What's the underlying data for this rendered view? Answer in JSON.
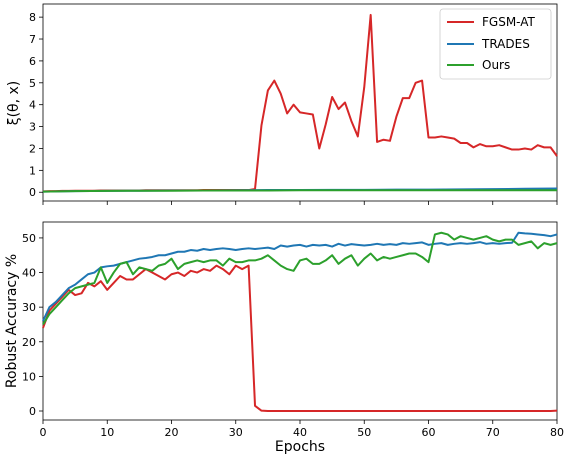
{
  "chart_data": [
    {
      "type": "line",
      "title": "",
      "xlabel": "",
      "ylabel": "ξ(θ, x)",
      "xlim": [
        0,
        80
      ],
      "ylim": [
        -0.4,
        8.6
      ],
      "xticks": [
        0,
        10,
        20,
        30,
        40,
        50,
        60,
        70,
        80
      ],
      "yticks": [
        0,
        1,
        2,
        3,
        4,
        5,
        6,
        7,
        8
      ],
      "x_tick_labels_visible": false,
      "legend": {
        "position": "top-right"
      },
      "series": [
        {
          "name": "FGSM-AT",
          "color": "#d62728",
          "x": [
            0,
            1,
            2,
            3,
            4,
            5,
            6,
            7,
            8,
            9,
            10,
            11,
            12,
            13,
            14,
            15,
            16,
            17,
            18,
            19,
            20,
            21,
            22,
            23,
            24,
            25,
            26,
            27,
            28,
            29,
            30,
            31,
            32,
            33,
            34,
            35,
            36,
            37,
            38,
            39,
            40,
            41,
            42,
            43,
            44,
            45,
            46,
            47,
            48,
            49,
            50,
            51,
            52,
            53,
            54,
            55,
            56,
            57,
            58,
            59,
            60,
            61,
            62,
            63,
            64,
            65,
            66,
            67,
            68,
            69,
            70,
            71,
            72,
            73,
            74,
            75,
            76,
            77,
            78,
            79,
            80
          ],
          "values": [
            0.04,
            0.05,
            0.05,
            0.06,
            0.06,
            0.07,
            0.07,
            0.07,
            0.07,
            0.08,
            0.08,
            0.08,
            0.08,
            0.08,
            0.08,
            0.08,
            0.09,
            0.09,
            0.09,
            0.09,
            0.09,
            0.09,
            0.09,
            0.09,
            0.09,
            0.1,
            0.1,
            0.1,
            0.1,
            0.1,
            0.1,
            0.1,
            0.1,
            0.15,
            3.05,
            4.65,
            5.1,
            4.5,
            3.6,
            4.0,
            3.65,
            3.6,
            3.55,
            2.0,
            3.1,
            4.35,
            3.8,
            4.1,
            3.25,
            2.55,
            4.8,
            8.1,
            2.3,
            2.4,
            2.35,
            3.45,
            4.3,
            4.3,
            5.0,
            5.1,
            2.5,
            2.5,
            2.55,
            2.5,
            2.45,
            2.25,
            2.25,
            2.05,
            2.2,
            2.1,
            2.1,
            2.15,
            2.05,
            1.95,
            1.95,
            2.0,
            1.95,
            2.15,
            2.05,
            2.05,
            1.65
          ]
        },
        {
          "name": "TRADES",
          "color": "#1f77b4",
          "x": [
            0,
            5,
            10,
            15,
            20,
            25,
            30,
            35,
            40,
            45,
            50,
            55,
            60,
            65,
            70,
            75,
            80
          ],
          "values": [
            0.03,
            0.05,
            0.06,
            0.07,
            0.08,
            0.08,
            0.09,
            0.1,
            0.1,
            0.11,
            0.11,
            0.12,
            0.12,
            0.13,
            0.14,
            0.16,
            0.17
          ]
        },
        {
          "name": "Ours",
          "color": "#2ca02c",
          "x": [
            0,
            5,
            10,
            15,
            20,
            25,
            30,
            35,
            40,
            45,
            50,
            55,
            60,
            65,
            70,
            75,
            80
          ],
          "values": [
            0.03,
            0.05,
            0.06,
            0.07,
            0.07,
            0.08,
            0.08,
            0.08,
            0.09,
            0.09,
            0.09,
            0.09,
            0.09,
            0.09,
            0.09,
            0.09,
            0.09
          ]
        }
      ]
    },
    {
      "type": "line",
      "title": "",
      "xlabel": "Epochs",
      "ylabel": "Robust Accuracy %",
      "xlim": [
        0,
        80
      ],
      "ylim": [
        -2.6,
        54.6
      ],
      "xticks": [
        0,
        10,
        20,
        30,
        40,
        50,
        60,
        70,
        80
      ],
      "yticks": [
        0,
        10,
        20,
        30,
        40,
        50
      ],
      "series": [
        {
          "name": "FGSM-AT",
          "color": "#d62728",
          "x": [
            0,
            1,
            2,
            3,
            4,
            5,
            6,
            7,
            8,
            9,
            10,
            11,
            12,
            13,
            14,
            15,
            16,
            17,
            18,
            19,
            20,
            21,
            22,
            23,
            24,
            25,
            26,
            27,
            28,
            29,
            30,
            31,
            32,
            33,
            34,
            35,
            36,
            37,
            38,
            39,
            40,
            41,
            42,
            43,
            44,
            45,
            46,
            47,
            48,
            49,
            50,
            51,
            52,
            53,
            54,
            55,
            56,
            57,
            58,
            59,
            60,
            61,
            62,
            63,
            64,
            65,
            66,
            67,
            68,
            69,
            70,
            71,
            72,
            73,
            74,
            75,
            76,
            77,
            78,
            79,
            80
          ],
          "values": [
            24,
            29,
            31,
            33,
            35,
            33.5,
            34,
            37,
            36,
            37.5,
            35,
            37,
            39,
            38,
            38,
            39.5,
            41,
            40,
            39,
            38,
            39.5,
            40,
            39,
            40.5,
            40,
            41,
            40.5,
            42,
            41,
            39.5,
            42,
            41,
            42,
            1.5,
            0.1,
            0,
            0,
            0,
            0,
            0,
            0,
            0,
            0,
            0,
            0,
            0,
            0,
            0,
            0,
            0,
            0,
            0,
            0,
            0,
            0,
            0,
            0,
            0,
            0,
            0,
            0,
            0,
            0,
            0,
            0,
            0,
            0,
            0,
            0,
            0,
            0,
            0,
            0,
            0,
            0,
            0,
            0,
            0,
            0,
            0,
            0.1
          ]
        },
        {
          "name": "TRADES",
          "color": "#1f77b4",
          "x": [
            0,
            1,
            2,
            3,
            4,
            5,
            6,
            7,
            8,
            9,
            10,
            11,
            12,
            13,
            14,
            15,
            16,
            17,
            18,
            19,
            20,
            21,
            22,
            23,
            24,
            25,
            26,
            27,
            28,
            29,
            30,
            31,
            32,
            33,
            34,
            35,
            36,
            37,
            38,
            39,
            40,
            41,
            42,
            43,
            44,
            45,
            46,
            47,
            48,
            49,
            50,
            51,
            52,
            53,
            54,
            55,
            56,
            57,
            58,
            59,
            60,
            61,
            62,
            63,
            64,
            65,
            66,
            67,
            68,
            69,
            70,
            71,
            72,
            73,
            74,
            75,
            76,
            77,
            78,
            79,
            80
          ],
          "values": [
            26,
            30,
            31.5,
            33.5,
            35.5,
            36.5,
            38,
            39.5,
            40,
            41.5,
            41.8,
            42,
            42.5,
            43,
            43.5,
            44,
            44.2,
            44.5,
            45,
            45,
            45.5,
            46,
            46,
            46.5,
            46.3,
            46.8,
            46.5,
            46.8,
            47,
            46.8,
            46.5,
            46.8,
            47,
            46.8,
            47,
            47.2,
            46.8,
            47.8,
            47.5,
            47.8,
            48,
            47.5,
            48,
            47.8,
            48,
            47.5,
            48.3,
            47.8,
            48.2,
            48,
            47.8,
            48,
            48.3,
            48,
            48.2,
            48,
            48.5,
            48.3,
            48.5,
            48.7,
            48,
            48.3,
            48.5,
            48,
            48.3,
            48.5,
            48.3,
            48.5,
            48.8,
            48.3,
            48.5,
            48.3,
            48.5,
            48.6,
            51.5,
            51.3,
            51.2,
            51,
            50.8,
            50.5,
            51
          ]
        },
        {
          "name": "Ours",
          "color": "#2ca02c",
          "x": [
            0,
            1,
            2,
            3,
            4,
            5,
            6,
            7,
            8,
            9,
            10,
            11,
            12,
            13,
            14,
            15,
            16,
            17,
            18,
            19,
            20,
            21,
            22,
            23,
            24,
            25,
            26,
            27,
            28,
            29,
            30,
            31,
            32,
            33,
            34,
            35,
            36,
            37,
            38,
            39,
            40,
            41,
            42,
            43,
            44,
            45,
            46,
            47,
            48,
            49,
            50,
            51,
            52,
            53,
            54,
            55,
            56,
            57,
            58,
            59,
            60,
            61,
            62,
            63,
            64,
            65,
            66,
            67,
            68,
            69,
            70,
            71,
            72,
            73,
            74,
            75,
            76,
            77,
            78,
            79,
            80
          ],
          "values": [
            25,
            28,
            30,
            32,
            34,
            35.5,
            36,
            36.5,
            37,
            41.5,
            37,
            40,
            42.5,
            43,
            39.5,
            41.5,
            41,
            40.5,
            42,
            42.5,
            44,
            41,
            42.5,
            43,
            43.5,
            43,
            43.5,
            43.5,
            42,
            44,
            43,
            43,
            43.5,
            43.5,
            44,
            45,
            43.5,
            42,
            41,
            40.5,
            43.5,
            44,
            42.5,
            42.5,
            43.5,
            45,
            42.5,
            44,
            45,
            42,
            44,
            45.5,
            43.5,
            44.5,
            44,
            44.5,
            45,
            45.5,
            45.5,
            44.5,
            43,
            51,
            51.5,
            51,
            49.5,
            50.5,
            50,
            49.5,
            50,
            50.5,
            49.5,
            49,
            49.5,
            49.5,
            48,
            48.5,
            49,
            47,
            48.5,
            48,
            48.5
          ]
        }
      ]
    }
  ]
}
